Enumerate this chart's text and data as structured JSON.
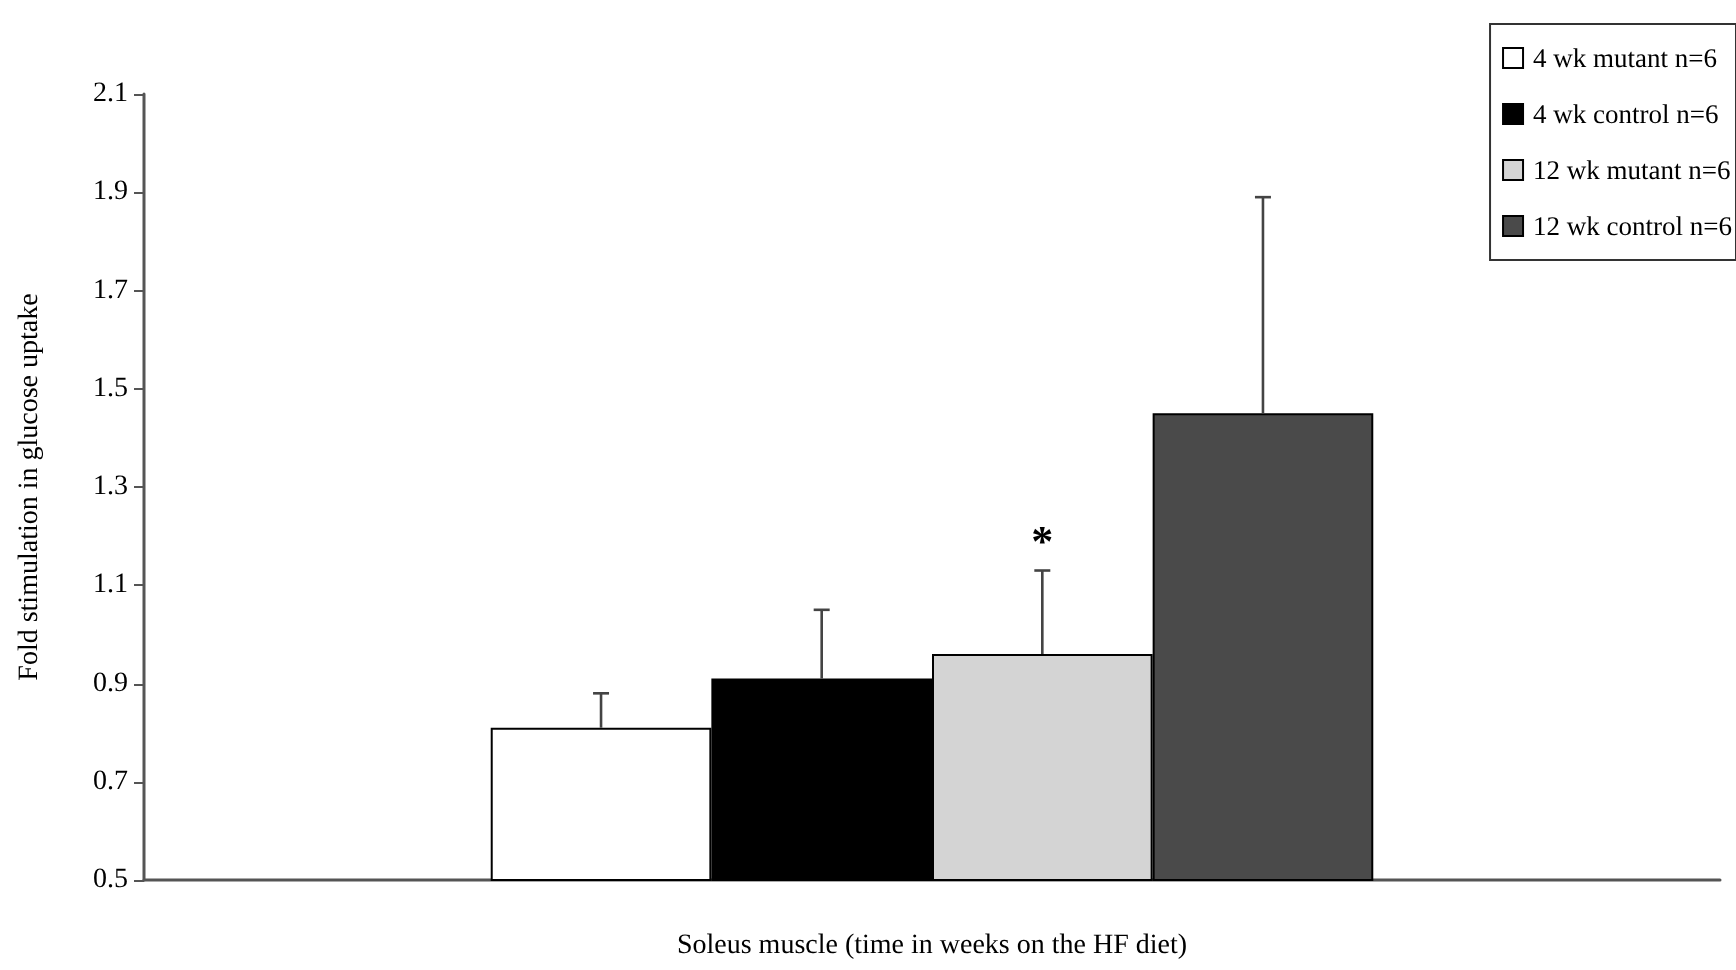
{
  "chart_data": {
    "type": "bar",
    "xlabel": "Soleus muscle (time in weeks on the HF diet)",
    "ylabel": "Fold stimulation in glucose uptake",
    "categories": [
      null
    ],
    "series": [
      {
        "name": "4 wk mutant n=6",
        "color": "#ffffff",
        "values": [
          0.81
        ],
        "errors": [
          [
            0.81,
            0.88
          ]
        ]
      },
      {
        "name": "4 wk control n=6",
        "color": "#000000",
        "values": [
          0.91
        ],
        "errors": [
          [
            0.91,
            1.05
          ]
        ]
      },
      {
        "name": "12 wk mutant n=6",
        "color": "#d4d4d4",
        "values": [
          0.96
        ],
        "errors": [
          [
            0.96,
            1.13
          ]
        ],
        "value_labels": [
          "*"
        ]
      },
      {
        "name": "12 wk control n=6",
        "color": "#4a4a4a",
        "values": [
          1.45
        ],
        "errors": [
          [
            1.45,
            1.89
          ]
        ]
      }
    ],
    "ylim": [
      0.5,
      2.1
    ],
    "yticks": [
      0.5,
      0.7,
      0.9,
      1.1,
      1.3,
      1.5,
      1.7,
      1.9,
      2.1
    ],
    "grid": false,
    "legend": "top right"
  }
}
